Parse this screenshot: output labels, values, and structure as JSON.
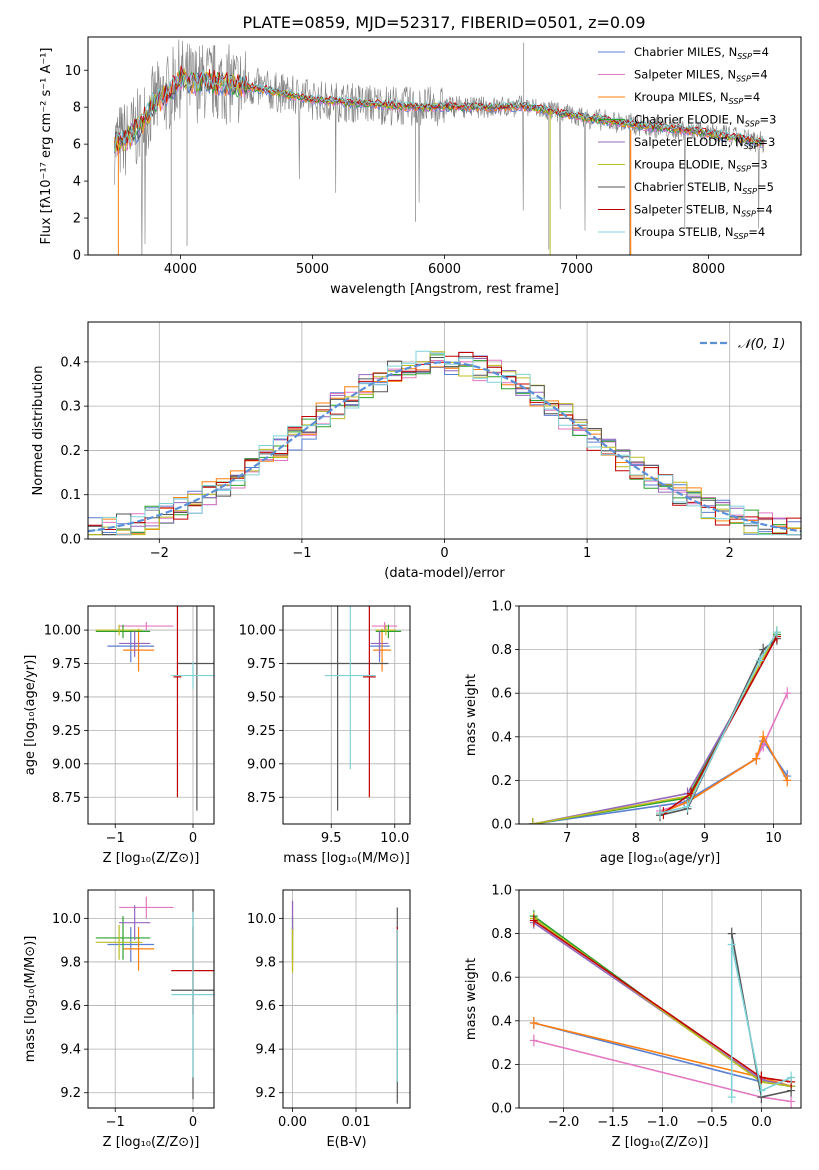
{
  "title": "PLATE=0859, MJD=52317, FIBERID=0501, z=0.09",
  "colors": {
    "grid": "#b0b0b0",
    "models": [
      "#5b7fd1",
      "#e377c2",
      "#ff7f0e",
      "#2ca02c",
      "#9467bd",
      "#bcbd22",
      "#555555",
      "#c00000",
      "#7fd3d8"
    ],
    "data": "#808080",
    "normal": "#5b8fd6"
  },
  "chart_data": [
    {
      "id": "spectrum",
      "type": "line",
      "xlabel": "wavelength [Angstrom, rest frame]",
      "ylabel": "Flux [fλ10⁻¹⁷ erg cm⁻² s⁻¹ A⁻¹]",
      "xlim": [
        3300,
        8700
      ],
      "ylim": [
        0,
        11.8
      ],
      "xticks": [
        4000,
        5000,
        6000,
        7000,
        8000
      ],
      "yticks": [
        0,
        2,
        4,
        6,
        8,
        10
      ],
      "legend": "top-right",
      "grid": false,
      "continuum": {
        "x": [
          3500,
          3600,
          3700,
          3800,
          3900,
          4000,
          4100,
          4200,
          4400,
          4600,
          4800,
          5000,
          5200,
          5400,
          5600,
          5800,
          6000,
          6200,
          6400,
          6600,
          6800,
          7000,
          7200,
          7400,
          7600,
          7800,
          8000,
          8200,
          8400
        ],
        "y": [
          6.0,
          6.3,
          7.0,
          8.2,
          8.7,
          9.6,
          9.3,
          9.4,
          9.2,
          9.0,
          8.7,
          8.4,
          8.3,
          8.2,
          8.1,
          8.0,
          8.05,
          8.0,
          8.0,
          8.05,
          7.8,
          7.5,
          7.3,
          7.1,
          6.9,
          6.8,
          6.6,
          6.35,
          6.1
        ]
      },
      "series": [
        {
          "name": "Chabrier MILES, N_SSP=4"
        },
        {
          "name": "Salpeter MILES, N_SSP=4"
        },
        {
          "name": "Kroupa MILES, N_SSP=4"
        },
        {
          "name": "Chabrier ELODIE, N_SSP=3"
        },
        {
          "name": "Salpeter ELODIE, N_SSP=3"
        },
        {
          "name": "Kroupa ELODIE, N_SSP=3"
        },
        {
          "name": "Chabrier STELIB, N_SSP=5"
        },
        {
          "name": "Salpeter STELIB, N_SSP=4"
        },
        {
          "name": "Kroupa STELIB, N_SSP=4"
        }
      ]
    },
    {
      "id": "residuals",
      "type": "histogram",
      "xlabel": "(data-model)/error",
      "ylabel": "Normed distribution",
      "xlim": [
        -2.5,
        2.5
      ],
      "ylim": [
        0,
        0.49
      ],
      "xticks": [
        -2,
        -1,
        0,
        1,
        2
      ],
      "yticks": [
        0.0,
        0.1,
        0.2,
        0.3,
        0.4
      ],
      "grid": true,
      "legend": "top-right",
      "reference_curve": {
        "name": "𝒩(0, 1)",
        "mean": 0,
        "sigma": 1
      },
      "bin_width": 0.1,
      "approx_shape": "histograms of all nine fits follow the N(0,1) curve"
    },
    {
      "id": "age-vs-Z",
      "type": "errorbar",
      "xlabel": "Z [log₁₀(Z/Z⊙)]",
      "ylabel": "age  [log₁₀(age/yr)]",
      "xlim": [
        -1.35,
        0.27
      ],
      "ylim": [
        8.55,
        10.18
      ],
      "xticks": [
        -1,
        0
      ],
      "yticks": [
        8.75,
        9.0,
        9.25,
        9.5,
        9.75,
        10.0
      ],
      "grid": true,
      "points": [
        {
          "x": -0.8,
          "xerr": 0.3,
          "y": 9.88,
          "yerr": 0.12
        },
        {
          "x": -0.6,
          "xerr": 0.35,
          "y": 10.03,
          "yerr": 0.03
        },
        {
          "x": -0.7,
          "xerr": 0.2,
          "y": 9.85,
          "yerr": 0.16
        },
        {
          "x": -0.9,
          "xerr": 0.35,
          "y": 9.99,
          "yerr": 0.05
        },
        {
          "x": -0.75,
          "xerr": 0.2,
          "y": 9.9,
          "yerr": 0.1
        },
        {
          "x": -0.95,
          "xerr": 0.3,
          "y": 10.0,
          "yerr": 0.04
        },
        {
          "x": 0.05,
          "xerr": 0.25,
          "y": 9.75,
          "yerr": 1.1
        },
        {
          "x": -0.2,
          "xerr": 0.05,
          "y": 9.65,
          "yerr": 0.9
        },
        {
          "x": 0.0,
          "xerr": 0.28,
          "y": 9.66,
          "yerr": 0.1
        }
      ]
    },
    {
      "id": "age-vs-mass",
      "type": "errorbar",
      "xlabel": "mass [log₁₀(M/M⊙)]",
      "ylabel": "",
      "xlim": [
        9.12,
        10.12
      ],
      "ylim": [
        8.55,
        10.18
      ],
      "xticks": [
        9.5,
        10.0
      ],
      "yticks": [
        8.75,
        9.0,
        9.25,
        9.5,
        9.75,
        10.0
      ],
      "grid": true,
      "points": [
        {
          "x": 9.88,
          "xerr": 0.08,
          "y": 9.88,
          "yerr": 0.12
        },
        {
          "x": 9.92,
          "xerr": 0.1,
          "y": 10.03,
          "yerr": 0.03
        },
        {
          "x": 9.9,
          "xerr": 0.07,
          "y": 9.85,
          "yerr": 0.16
        },
        {
          "x": 9.95,
          "xerr": 0.1,
          "y": 9.99,
          "yerr": 0.05
        },
        {
          "x": 9.88,
          "xerr": 0.07,
          "y": 9.9,
          "yerr": 0.1
        },
        {
          "x": 9.93,
          "xerr": 0.08,
          "y": 10.0,
          "yerr": 0.04
        },
        {
          "x": 9.55,
          "xerr": 0.4,
          "y": 9.75,
          "yerr": 1.1
        },
        {
          "x": 9.8,
          "xerr": 0.05,
          "y": 9.65,
          "yerr": 0.9
        },
        {
          "x": 9.65,
          "xerr": 0.2,
          "y": 9.66,
          "yerr": 0.7
        }
      ]
    },
    {
      "id": "weight-vs-age",
      "type": "line",
      "xlabel": "age  [log₁₀(age/yr)]",
      "ylabel": "mass weight",
      "xlim": [
        6.3,
        10.4
      ],
      "ylim": [
        0,
        1.0
      ],
      "xticks": [
        7,
        8,
        9,
        10
      ],
      "yticks": [
        0.0,
        0.2,
        0.4,
        0.6,
        0.8,
        1.0
      ],
      "grid": true,
      "series": [
        {
          "x": [
            6.5,
            8.7,
            9.75,
            9.85,
            10.2
          ],
          "y": [
            0.0,
            0.1,
            0.3,
            0.38,
            0.22
          ]
        },
        {
          "x": [
            8.35,
            8.75,
            9.75,
            9.85,
            10.2
          ],
          "y": [
            0.06,
            0.1,
            0.3,
            0.36,
            0.6
          ]
        },
        {
          "x": [
            8.35,
            8.75,
            9.75,
            9.85,
            10.2
          ],
          "y": [
            0.05,
            0.1,
            0.3,
            0.4,
            0.2
          ]
        },
        {
          "x": [
            6.5,
            8.75,
            10.05
          ],
          "y": [
            0.0,
            0.12,
            0.87
          ]
        },
        {
          "x": [
            6.5,
            8.75,
            10.05
          ],
          "y": [
            0.0,
            0.14,
            0.86
          ]
        },
        {
          "x": [
            6.5,
            8.8,
            10.05
          ],
          "y": [
            0.0,
            0.13,
            0.88
          ]
        },
        {
          "x": [
            8.35,
            8.75,
            9.85,
            10.05
          ],
          "y": [
            0.04,
            0.07,
            0.8,
            0.85
          ]
        },
        {
          "x": [
            8.4,
            8.8,
            10.05
          ],
          "y": [
            0.05,
            0.14,
            0.86
          ]
        },
        {
          "x": [
            8.35,
            8.75,
            9.8,
            10.05
          ],
          "y": [
            0.05,
            0.08,
            0.75,
            0.88
          ]
        }
      ]
    },
    {
      "id": "mass-vs-Z",
      "type": "errorbar",
      "xlabel": "Z [log₁₀(Z/Z⊙)]",
      "ylabel": "mass [log₁₀(M/M⊙)]",
      "xlim": [
        -1.35,
        0.27
      ],
      "ylim": [
        9.13,
        10.13
      ],
      "xticks": [
        -1,
        0
      ],
      "yticks": [
        9.2,
        9.4,
        9.6,
        9.8,
        10.0
      ],
      "grid": true,
      "points": [
        {
          "x": -0.8,
          "xerr": 0.3,
          "y": 9.88,
          "yerr": 0.08
        },
        {
          "x": -0.6,
          "xerr": 0.35,
          "y": 10.05,
          "yerr": 0.05
        },
        {
          "x": -0.7,
          "xerr": 0.2,
          "y": 9.86,
          "yerr": 0.1
        },
        {
          "x": -0.9,
          "xerr": 0.35,
          "y": 9.91,
          "yerr": 0.1
        },
        {
          "x": -0.75,
          "xerr": 0.2,
          "y": 9.98,
          "yerr": 0.08
        },
        {
          "x": -0.95,
          "xerr": 0.3,
          "y": 9.89,
          "yerr": 0.08
        },
        {
          "x": 0.0,
          "xerr": 0.28,
          "y": 9.67,
          "yerr": 0.5
        },
        {
          "x": 0.0,
          "xerr": 0.28,
          "y": 9.76,
          "yerr": 0.2
        },
        {
          "x": 0.0,
          "xerr": 0.28,
          "y": 9.65,
          "yerr": 0.38
        }
      ]
    },
    {
      "id": "mass-vs-EBV",
      "type": "errorbar",
      "xlabel": "E(B-V)",
      "ylabel": "",
      "xlim": [
        -0.0015,
        0.0185
      ],
      "ylim": [
        9.13,
        10.13
      ],
      "xticks": [
        0.0,
        0.01
      ],
      "yticks": [
        9.2,
        9.4,
        9.6,
        9.8,
        10.0
      ],
      "grid": true,
      "points": [
        {
          "x": 0.0,
          "xerr": 0.0,
          "y": 9.88,
          "yerr": 0.08
        },
        {
          "x": 0.0,
          "xerr": 0.0,
          "y": 10.03,
          "yerr": 0.05
        },
        {
          "x": 0.0,
          "xerr": 0.0,
          "y": 9.86,
          "yerr": 0.1
        },
        {
          "x": 0.0,
          "xerr": 0.0,
          "y": 9.91,
          "yerr": 0.1
        },
        {
          "x": 0.0,
          "xerr": 0.0,
          "y": 10.0,
          "yerr": 0.08
        },
        {
          "x": 0.0,
          "xerr": 0.0,
          "y": 9.85,
          "yerr": 0.1
        },
        {
          "x": 0.0165,
          "xerr": 0.0,
          "y": 9.6,
          "yerr": 0.45
        },
        {
          "x": 0.0165,
          "xerr": 0.0,
          "y": 9.76,
          "yerr": 0.2
        },
        {
          "x": 0.0165,
          "xerr": 0.0,
          "y": 9.6,
          "yerr": 0.35
        }
      ]
    },
    {
      "id": "weight-vs-Z",
      "type": "line",
      "xlabel": "Z [log₁₀(Z/Z⊙)]",
      "ylabel": "mass weight",
      "xlim": [
        -2.45,
        0.4
      ],
      "ylim": [
        0,
        1.0
      ],
      "xticks": [
        -2.0,
        -1.5,
        -1.0,
        -0.5,
        0.0
      ],
      "yticks": [
        0.0,
        0.2,
        0.4,
        0.6,
        0.8,
        1.0
      ],
      "grid": true,
      "series": [
        {
          "x": [
            -2.3,
            0.0,
            0.3
          ],
          "y": [
            0.39,
            0.12,
            0.1
          ]
        },
        {
          "x": [
            -2.3,
            0.0,
            0.3
          ],
          "y": [
            0.31,
            0.05,
            0.03
          ]
        },
        {
          "x": [
            -2.3,
            0.0,
            0.3
          ],
          "y": [
            0.39,
            0.14,
            0.1
          ]
        },
        {
          "x": [
            -2.3,
            0.0,
            0.3
          ],
          "y": [
            0.88,
            0.12,
            0.1
          ]
        },
        {
          "x": [
            -2.3,
            0.0,
            0.3
          ],
          "y": [
            0.85,
            0.13,
            0.1
          ]
        },
        {
          "x": [
            -2.3,
            0.0,
            0.3
          ],
          "y": [
            0.87,
            0.12,
            0.1
          ]
        },
        {
          "x": [
            -0.3,
            0.0,
            0.3
          ],
          "y": [
            0.8,
            0.05,
            0.08
          ]
        },
        {
          "x": [
            -2.3,
            0.0,
            0.3
          ],
          "y": [
            0.86,
            0.14,
            0.12
          ]
        },
        {
          "x": [
            -0.3,
            -0.3,
            0.0,
            0.3
          ],
          "y": [
            0.05,
            0.75,
            0.08,
            0.14
          ]
        }
      ]
    }
  ]
}
